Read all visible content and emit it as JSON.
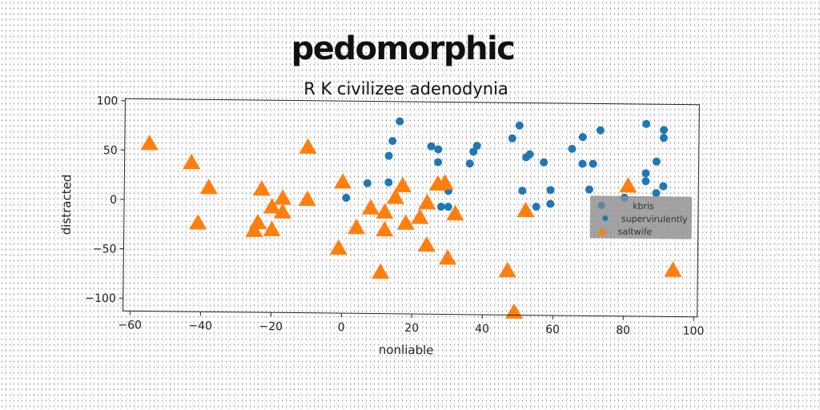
{
  "chart_data": {
    "type": "scatter",
    "title": "pedomorphic",
    "subtitle": "R K civilizee adenodynia",
    "xlabel": "nonliable",
    "ylabel": "distracted",
    "xlim": [
      -62,
      101
    ],
    "ylim": [
      -113,
      102
    ],
    "xticks": [
      -60,
      -40,
      -20,
      0,
      20,
      40,
      60,
      80,
      100
    ],
    "yticks": [
      100,
      50,
      0,
      -50,
      -100
    ],
    "grid": false,
    "legend_position": "center-right",
    "legend": [
      "kbris",
      "supervirulently",
      "saltwife"
    ],
    "series": [
      {
        "name": "kbris",
        "marker": "circle",
        "color": "#1f77b4",
        "points": []
      },
      {
        "name": "supervirulently",
        "marker": "circle",
        "color": "#1f77b4",
        "points": [
          [
            16,
            82
          ],
          [
            14,
            62
          ],
          [
            13,
            47
          ],
          [
            13,
            20
          ],
          [
            7,
            19
          ],
          [
            1,
            4
          ],
          [
            25,
            57
          ],
          [
            27,
            54
          ],
          [
            27,
            41
          ],
          [
            29,
            20
          ],
          [
            28,
            -4
          ],
          [
            30,
            -4
          ],
          [
            30,
            12
          ],
          [
            38,
            58
          ],
          [
            37,
            52
          ],
          [
            36,
            40
          ],
          [
            48,
            66
          ],
          [
            50,
            79
          ],
          [
            53,
            50
          ],
          [
            52,
            47
          ],
          [
            57,
            42
          ],
          [
            51,
            13
          ],
          [
            55,
            -3
          ],
          [
            59,
            14
          ],
          [
            59,
            0
          ],
          [
            65,
            56
          ],
          [
            68,
            68
          ],
          [
            68,
            41
          ],
          [
            71,
            41
          ],
          [
            73,
            75
          ],
          [
            70,
            15
          ],
          [
            80,
            7
          ],
          [
            86,
            82
          ],
          [
            86,
            32
          ],
          [
            86,
            24
          ],
          [
            91,
            76
          ],
          [
            91,
            68
          ],
          [
            89,
            44
          ],
          [
            91,
            19
          ],
          [
            89,
            12
          ]
        ]
      },
      {
        "name": "saltwife",
        "marker": "triangle",
        "color": "#ff7f0e",
        "points": [
          [
            -55,
            57
          ],
          [
            -43,
            38
          ],
          [
            -38,
            13
          ],
          [
            -41,
            -23
          ],
          [
            -24,
            -22
          ],
          [
            -25,
            -30
          ],
          [
            -23,
            12
          ],
          [
            -20,
            -6
          ],
          [
            -17,
            3
          ],
          [
            -17,
            -11
          ],
          [
            -20,
            -29
          ],
          [
            -10,
            55
          ],
          [
            -10,
            2
          ],
          [
            0,
            20
          ],
          [
            -1,
            -47
          ],
          [
            4,
            -26
          ],
          [
            8,
            -6
          ],
          [
            12,
            -10
          ],
          [
            12,
            -28
          ],
          [
            11,
            -71
          ],
          [
            15,
            5
          ],
          [
            17,
            17
          ],
          [
            18,
            -21
          ],
          [
            22,
            -15
          ],
          [
            24,
            0
          ],
          [
            27,
            19
          ],
          [
            29,
            20
          ],
          [
            24,
            -43
          ],
          [
            30,
            -56
          ],
          [
            32,
            -11
          ],
          [
            47,
            -68
          ],
          [
            49,
            -110
          ],
          [
            52,
            -7
          ],
          [
            81,
            19
          ],
          [
            94,
            -66
          ]
        ]
      }
    ]
  }
}
